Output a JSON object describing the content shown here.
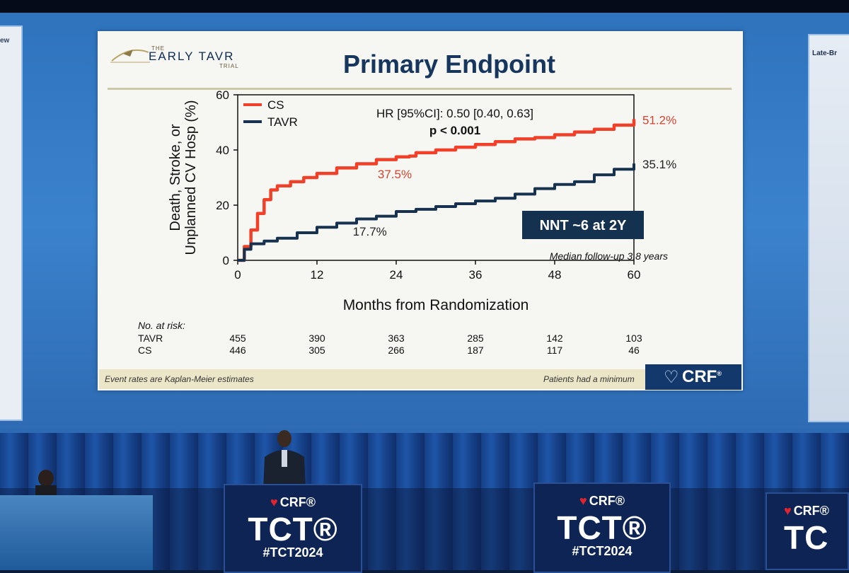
{
  "slide": {
    "logo": {
      "the": "THE",
      "name": "EARLY TAVR",
      "trial": "TRIAL"
    },
    "title": "Primary Endpoint",
    "footer_left": "Event rates are Kaplan-Meier estimates",
    "footer_right": "Patients had a minimum",
    "brand": "CRF",
    "brand_mark": "®"
  },
  "side_panels": {
    "left_label": "ew",
    "right_label": "Late-Br"
  },
  "podiums": [
    {
      "crf": "CRF®",
      "tct": "TCT®",
      "hash": "#TCT2024"
    },
    {
      "crf": "CRF®",
      "tct": "TCT®",
      "hash": "#TCT2024"
    },
    {
      "crf": "CRF®",
      "tct": "TC"
    }
  ],
  "chart_data": {
    "type": "line",
    "title": "",
    "xlabel": "Months from Randomization",
    "ylabel": "Death, Stroke, or Unplanned CV Hosp (%)",
    "xlim": [
      0,
      60
    ],
    "ylim": [
      0,
      60
    ],
    "xticks": [
      0,
      12,
      24,
      36,
      48,
      60
    ],
    "yticks": [
      0,
      20,
      40,
      60
    ],
    "legend": "top-left",
    "series": [
      {
        "name": "CS",
        "color": "#f0402a",
        "x": [
          0,
          1,
          2,
          3,
          4,
          5,
          6,
          8,
          10,
          12,
          15,
          18,
          21,
          24,
          26,
          27,
          30,
          33,
          36,
          39,
          42,
          45,
          48,
          51,
          54,
          57,
          60
        ],
        "y": [
          0,
          5,
          11,
          17,
          22,
          25.5,
          27,
          28.5,
          30,
          31.5,
          33.5,
          35,
          36.5,
          37.5,
          37.8,
          39,
          40,
          41,
          42,
          43,
          44,
          44.5,
          45.5,
          46.5,
          47.5,
          49,
          51.2
        ]
      },
      {
        "name": "TAVR",
        "color": "#17324f",
        "x": [
          0,
          1,
          2,
          4,
          6,
          9,
          12,
          15,
          18,
          21,
          24,
          27,
          30,
          33,
          36,
          39,
          42,
          45,
          48,
          51,
          54,
          57,
          60
        ],
        "y": [
          0,
          4,
          6,
          7,
          8,
          10,
          12,
          13.5,
          15,
          16,
          17.7,
          18.5,
          19.5,
          20.5,
          21.5,
          22.5,
          24,
          26,
          27.5,
          28.5,
          31,
          33,
          35.1
        ]
      }
    ],
    "annotations": {
      "hr": "HR [95%CI]: 0.50 [0.40, 0.63]",
      "p": "p < 0.001",
      "nnt": "NNT ~6 at 2Y",
      "median_followup": "Median follow-up 3.8 years",
      "cs_24": "37.5%",
      "tavr_24": "17.7%",
      "cs_end": "51.2%",
      "tavr_end": "35.1%"
    },
    "number_at_risk": {
      "label": "No. at risk:",
      "rows": [
        {
          "name": "TAVR",
          "values": [
            455,
            390,
            363,
            285,
            142,
            103
          ]
        },
        {
          "name": "CS",
          "values": [
            446,
            305,
            266,
            187,
            117,
            46
          ]
        }
      ]
    }
  }
}
